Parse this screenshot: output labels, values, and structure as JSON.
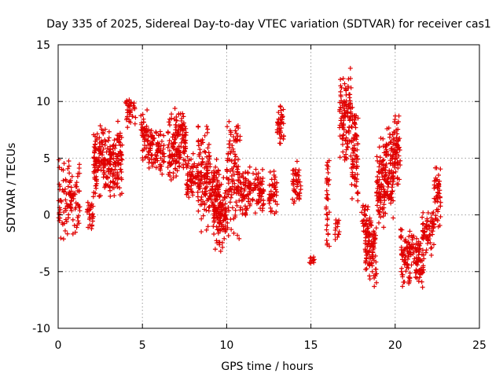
{
  "chart_data": {
    "type": "scatter",
    "title": "Day 335 of 2025, Sidereal Day-to-day VTEC variation (SDTVAR) for receiver cas1",
    "xlabel": "GPS time / hours",
    "ylabel": "SDTVAR / TECUs",
    "xlim": [
      0,
      25
    ],
    "ylim": [
      -10,
      15
    ],
    "xticks": [
      "0",
      "5",
      "10",
      "15",
      "20",
      "25"
    ],
    "yticks": [
      "-10",
      "-5",
      "0",
      "5",
      "10",
      "15"
    ],
    "grid": true,
    "marker": "+",
    "series_color": "#e00000",
    "clusters": [
      {
        "x": [
          0.0,
          1.3
        ],
        "y": [
          -2.5,
          5.5
        ]
      },
      {
        "x": [
          1.7,
          2.1
        ],
        "y": [
          -1.5,
          2.0
        ]
      },
      {
        "x": [
          2.1,
          2.8
        ],
        "y": [
          1.0,
          8.8
        ]
      },
      {
        "x": [
          2.8,
          3.5
        ],
        "y": [
          1.5,
          7.5
        ]
      },
      {
        "x": [
          3.5,
          3.8
        ],
        "y": [
          1.0,
          9.0
        ]
      },
      {
        "x": [
          4.0,
          4.6
        ],
        "y": [
          7.5,
          10.5
        ]
      },
      {
        "x": [
          4.9,
          5.3
        ],
        "y": [
          4.5,
          9.8
        ]
      },
      {
        "x": [
          5.3,
          6.3
        ],
        "y": [
          3.5,
          8.0
        ]
      },
      {
        "x": [
          6.5,
          7.1
        ],
        "y": [
          2.5,
          9.5
        ]
      },
      {
        "x": [
          7.1,
          7.6
        ],
        "y": [
          3.0,
          10.0
        ]
      },
      {
        "x": [
          7.6,
          8.3
        ],
        "y": [
          1.0,
          5.5
        ]
      },
      {
        "x": [
          8.3,
          9.0
        ],
        "y": [
          -1.5,
          8.7
        ]
      },
      {
        "x": [
          9.0,
          9.6
        ],
        "y": [
          -1.0,
          5.0
        ]
      },
      {
        "x": [
          9.2,
          10.0
        ],
        "y": [
          -3.8,
          3.5
        ]
      },
      {
        "x": [
          10.0,
          10.8
        ],
        "y": [
          -2.5,
          9.0
        ]
      },
      {
        "x": [
          10.8,
          11.5
        ],
        "y": [
          -0.5,
          4.5
        ]
      },
      {
        "x": [
          11.5,
          12.2
        ],
        "y": [
          0.0,
          4.5
        ]
      },
      {
        "x": [
          12.5,
          13.0
        ],
        "y": [
          -0.5,
          4.0
        ]
      },
      {
        "x": [
          13.0,
          13.4
        ],
        "y": [
          5.5,
          10.5
        ]
      },
      {
        "x": [
          13.9,
          14.4
        ],
        "y": [
          0.5,
          5.0
        ]
      },
      {
        "x": [
          14.9,
          15.2
        ],
        "y": [
          -4.5,
          -3.5
        ]
      },
      {
        "x": [
          15.9,
          16.1
        ],
        "y": [
          -3.5,
          5.5
        ]
      },
      {
        "x": [
          16.4,
          16.7
        ],
        "y": [
          -2.5,
          0.0
        ]
      },
      {
        "x": [
          16.7,
          17.4
        ],
        "y": [
          4.0,
          13.5
        ]
      },
      {
        "x": [
          17.4,
          17.8
        ],
        "y": [
          0.5,
          10.0
        ]
      },
      {
        "x": [
          18.0,
          18.4
        ],
        "y": [
          -2.0,
          1.0
        ]
      },
      {
        "x": [
          18.2,
          18.9
        ],
        "y": [
          -7.0,
          0.5
        ]
      },
      {
        "x": [
          18.9,
          19.4
        ],
        "y": [
          -2.0,
          7.0
        ]
      },
      {
        "x": [
          19.4,
          19.9
        ],
        "y": [
          -1.0,
          8.0
        ]
      },
      {
        "x": [
          19.9,
          20.3
        ],
        "y": [
          2.0,
          9.5
        ]
      },
      {
        "x": [
          20.3,
          20.9
        ],
        "y": [
          -6.5,
          -0.5
        ]
      },
      {
        "x": [
          20.9,
          21.4
        ],
        "y": [
          -4.5,
          -1.5
        ]
      },
      {
        "x": [
          21.2,
          21.7
        ],
        "y": [
          -7.0,
          -2.0
        ]
      },
      {
        "x": [
          21.6,
          22.3
        ],
        "y": [
          -4.0,
          0.5
        ]
      },
      {
        "x": [
          22.3,
          22.7
        ],
        "y": [
          -1.5,
          5.0
        ]
      }
    ]
  }
}
